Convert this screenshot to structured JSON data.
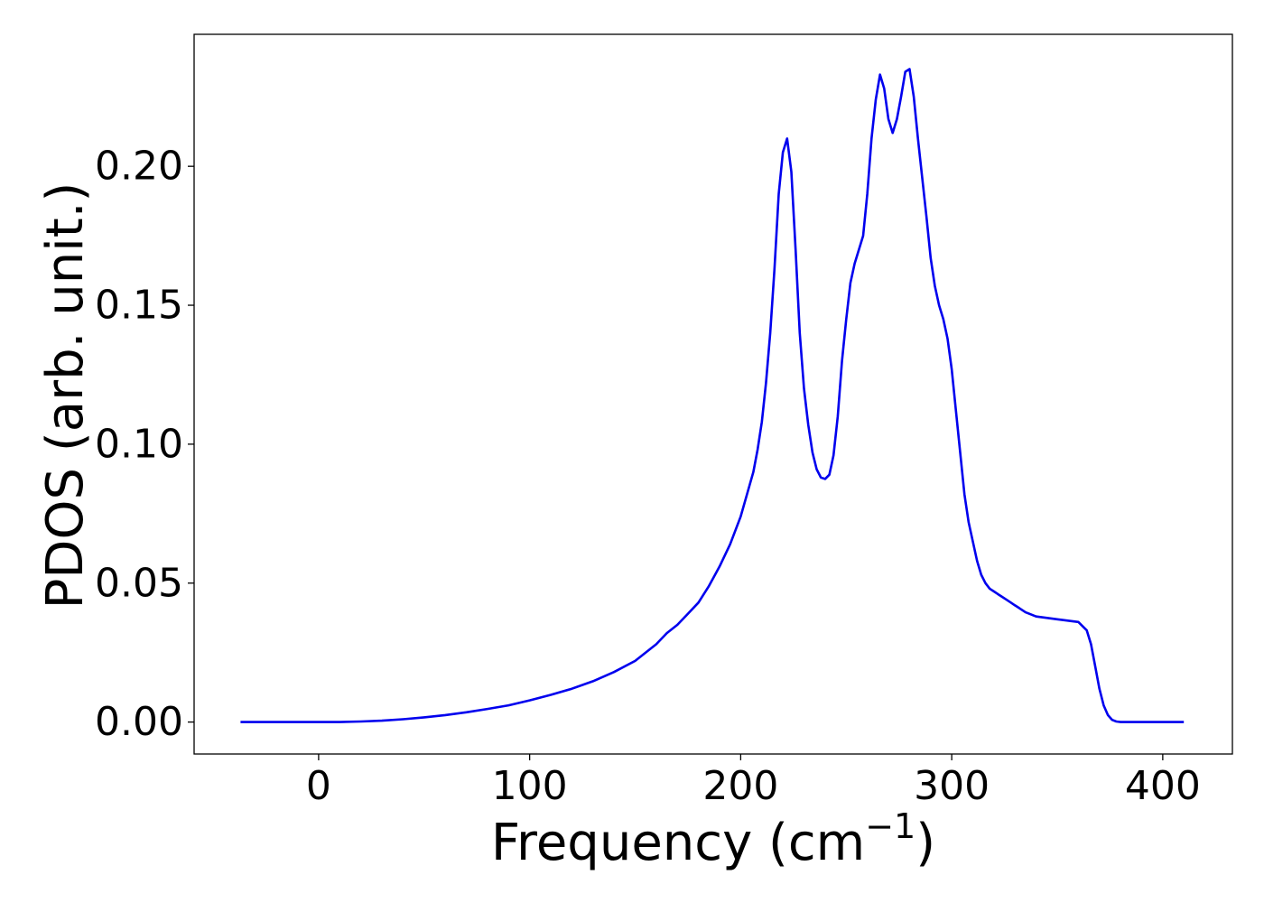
{
  "chart_data": {
    "type": "line",
    "xlabel": "Frequency (cm",
    "xlabel_exponent": "−1",
    "xlabel_suffix": ")",
    "ylabel": "PDOS (arb. unit.)",
    "xlim": [
      -59,
      433
    ],
    "ylim": [
      -0.0115,
      0.2475
    ],
    "xticks": [
      0,
      100,
      200,
      300,
      400
    ],
    "xtick_labels": [
      "0",
      "100",
      "200",
      "300",
      "400"
    ],
    "yticks": [
      0.0,
      0.05,
      0.1,
      0.15,
      0.2
    ],
    "ytick_labels": [
      "0.00",
      "0.05",
      "0.10",
      "0.15",
      "0.20"
    ],
    "grid": false,
    "series": [
      {
        "color": "#0000ee",
        "x": [
          -37,
          0,
          10,
          20,
          30,
          40,
          50,
          60,
          70,
          80,
          90,
          100,
          110,
          120,
          130,
          140,
          150,
          160,
          165,
          170,
          175,
          180,
          185,
          190,
          195,
          200,
          203,
          206,
          208,
          210,
          212,
          214,
          216,
          218,
          220,
          222,
          224,
          226,
          228,
          230,
          232,
          234,
          236,
          238,
          240,
          242,
          244,
          246,
          248,
          250,
          252,
          254,
          256,
          258,
          260,
          262,
          264,
          266,
          268,
          270,
          272,
          274,
          276,
          278,
          280,
          282,
          284,
          286,
          288,
          290,
          292,
          294,
          296,
          298,
          300,
          302,
          304,
          306,
          308,
          310,
          312,
          314,
          316,
          318,
          320,
          322,
          324,
          326,
          328,
          330,
          332,
          335,
          340,
          350,
          360,
          364,
          366,
          368,
          370,
          372,
          374,
          376,
          378,
          380,
          382,
          384,
          386,
          390,
          400,
          410
        ],
        "y": [
          0.0,
          0.0,
          0.0,
          0.0002,
          0.0005,
          0.001,
          0.0017,
          0.0025,
          0.0035,
          0.0047,
          0.006,
          0.0078,
          0.0098,
          0.012,
          0.0147,
          0.018,
          0.022,
          0.028,
          0.032,
          0.035,
          0.039,
          0.043,
          0.049,
          0.056,
          0.064,
          0.074,
          0.082,
          0.09,
          0.098,
          0.108,
          0.122,
          0.14,
          0.163,
          0.19,
          0.205,
          0.21,
          0.198,
          0.17,
          0.14,
          0.12,
          0.107,
          0.097,
          0.091,
          0.088,
          0.0875,
          0.089,
          0.096,
          0.11,
          0.13,
          0.145,
          0.158,
          0.165,
          0.17,
          0.175,
          0.19,
          0.21,
          0.224,
          0.233,
          0.228,
          0.217,
          0.212,
          0.217,
          0.225,
          0.234,
          0.235,
          0.225,
          0.21,
          0.196,
          0.182,
          0.167,
          0.157,
          0.15,
          0.145,
          0.138,
          0.127,
          0.112,
          0.097,
          0.082,
          0.072,
          0.065,
          0.058,
          0.053,
          0.05,
          0.048,
          0.047,
          0.046,
          0.045,
          0.044,
          0.043,
          0.042,
          0.041,
          0.0395,
          0.038,
          0.037,
          0.036,
          0.033,
          0.028,
          0.02,
          0.012,
          0.006,
          0.0025,
          0.0008,
          0.0002,
          0.0,
          0.0,
          0.0,
          0.0,
          0.0,
          0.0,
          0.0
        ]
      }
    ]
  }
}
